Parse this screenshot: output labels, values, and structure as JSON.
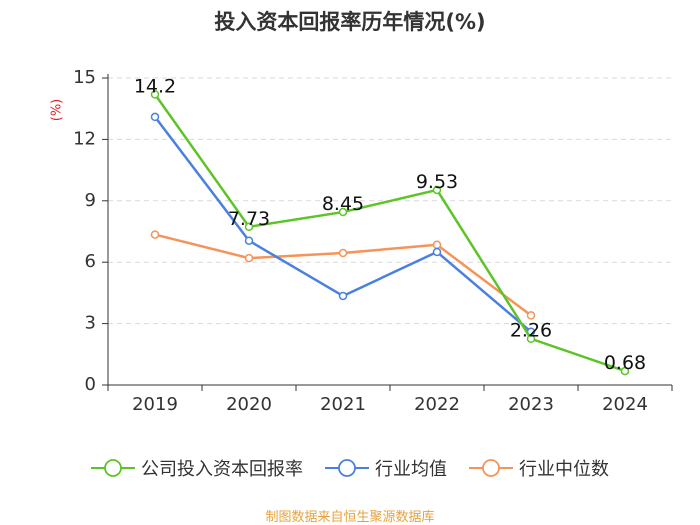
{
  "chart_data": {
    "type": "line",
    "title": "投入资本回报率历年情况(%)",
    "ylabel": "(%)",
    "xlabel": "",
    "categories": [
      "2019",
      "2020",
      "2021",
      "2022",
      "2023",
      "2024"
    ],
    "ylim": [
      0,
      15
    ],
    "yticks": [
      0,
      3,
      6,
      9,
      12,
      15
    ],
    "grid": true,
    "legend_position": "bottom",
    "series": [
      {
        "name": "公司投入资本回报率",
        "color": "#5cc427",
        "values": [
          14.2,
          7.73,
          8.45,
          9.53,
          2.26,
          0.68
        ],
        "labels": [
          "14.2",
          "7.73",
          "8.45",
          "9.53",
          "2.26",
          "0.68"
        ],
        "show_labels": true
      },
      {
        "name": "行业均值",
        "color": "#4a80e0",
        "values": [
          13.1,
          7.05,
          4.35,
          6.5,
          2.6,
          null
        ],
        "show_labels": false
      },
      {
        "name": "行业中位数",
        "color": "#f5945a",
        "values": [
          7.35,
          6.2,
          6.45,
          6.85,
          3.4,
          null
        ],
        "show_labels": false
      }
    ],
    "source": "制图数据来自恒生聚源数据库",
    "unit_color": "#e02020"
  }
}
